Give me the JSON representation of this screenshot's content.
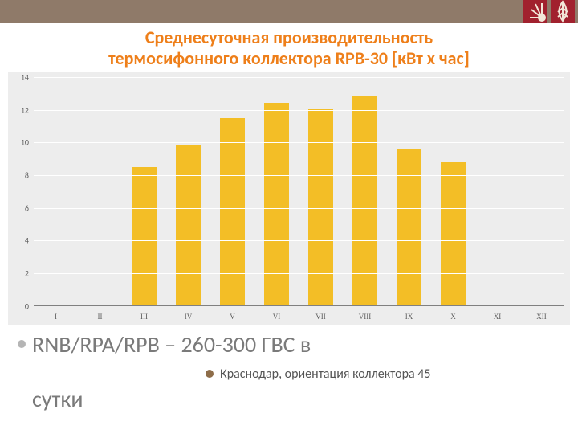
{
  "title_line1": "Среднесуточная производительность",
  "title_line2": "термосифонного коллектора RPB-30 [кВт х час]",
  "title_color": "#ee7f1a",
  "chart": {
    "type": "bar",
    "background_color": "#ededed",
    "grid_color": "#ffffff",
    "axis_color": "#808080",
    "label_color": "#5c5c5c",
    "label_fontsize": 10,
    "bar_color": "#f3be26",
    "ylim": [
      0,
      14
    ],
    "ytick_step": 2,
    "bar_width": 0.55,
    "categories": [
      "I",
      "II",
      "III",
      "IV",
      "V",
      "VI",
      "VII",
      "VIII",
      "IX",
      "X",
      "XI",
      "XII"
    ],
    "values": [
      null,
      null,
      8.5,
      9.8,
      11.5,
      12.4,
      12.1,
      12.8,
      9.6,
      8.8,
      null,
      null
    ]
  },
  "bullets": {
    "gray_dot_color": "#b5b5b5",
    "brown_dot_color": "#8e6d49",
    "line1": "RNB/RPA/RPB – 260-300 ГВС в",
    "line2": "Краснодар, ориентация коллектора 45",
    "line3": "сутки"
  },
  "band_color": "#8f7a69",
  "logo_bg": "#a1212e",
  "logo_fg": "#f3e7d8"
}
